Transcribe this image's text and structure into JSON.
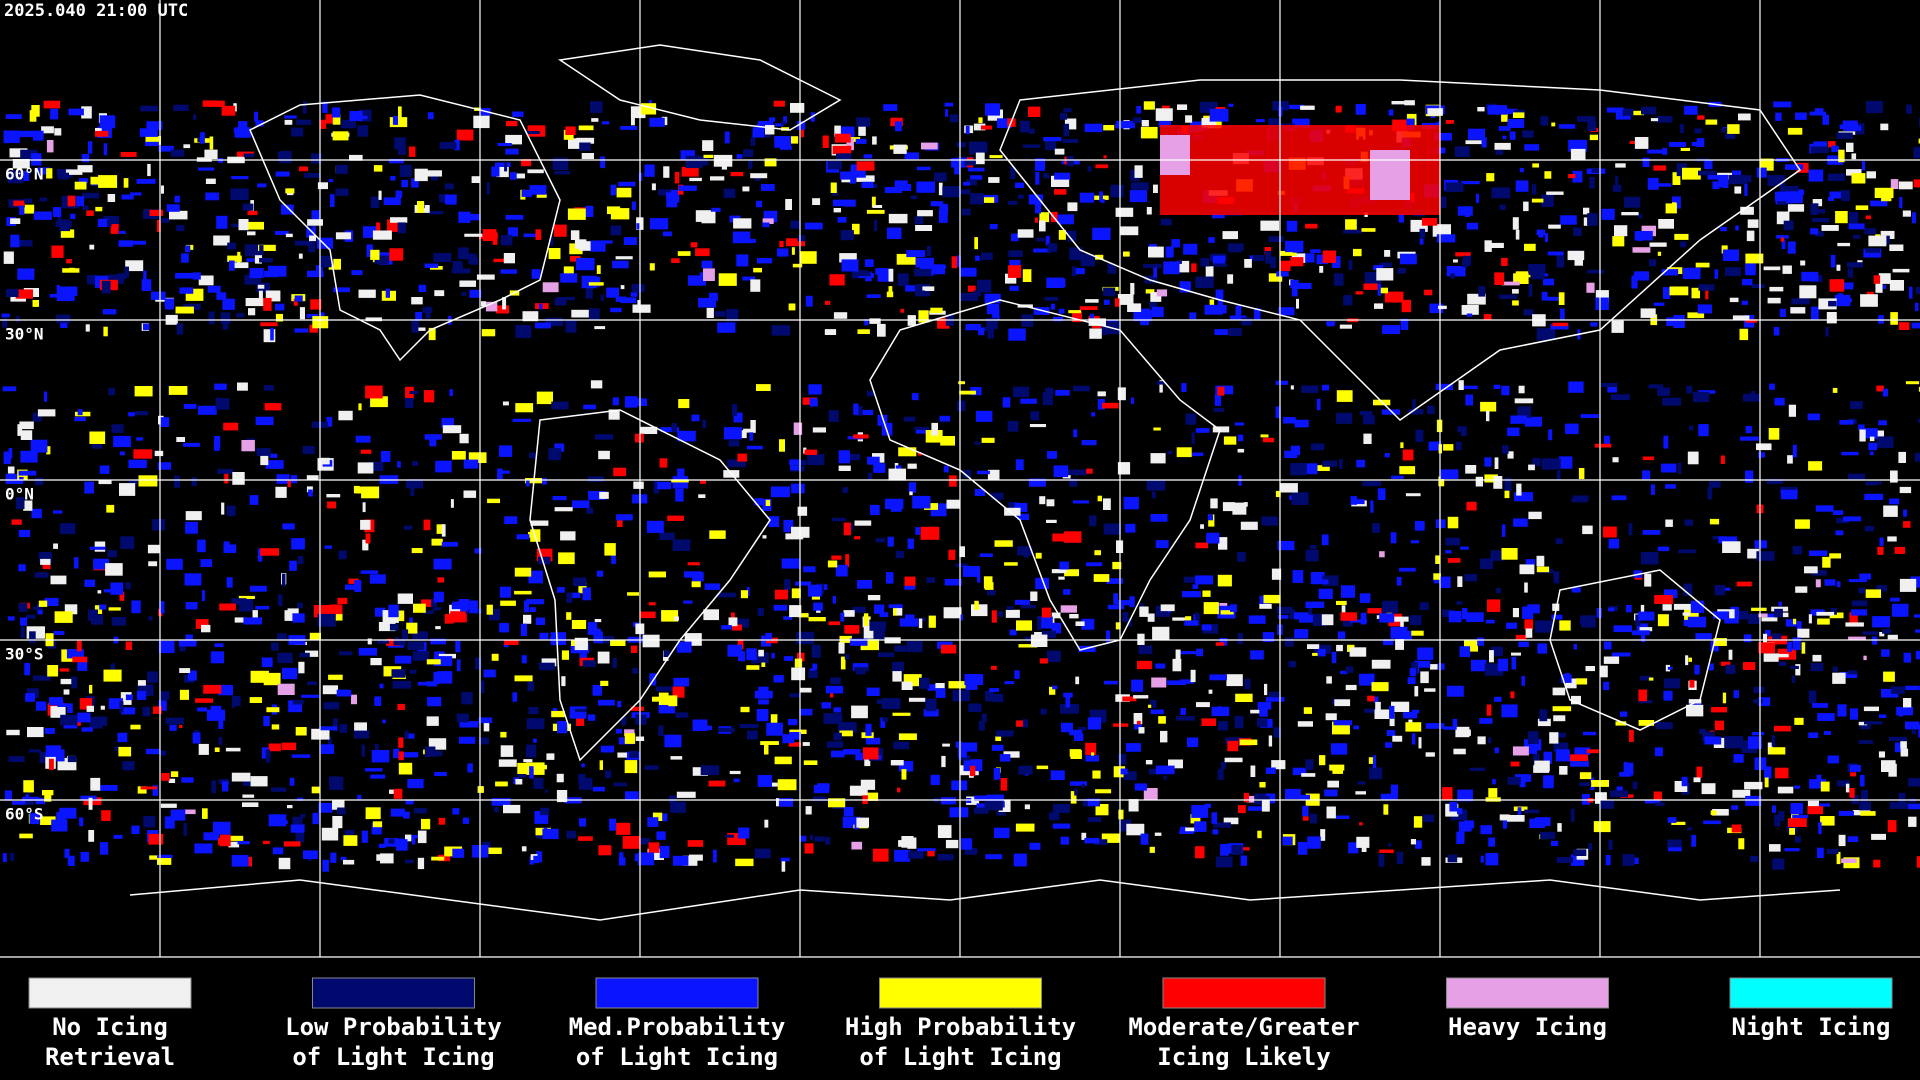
{
  "header": {
    "timestamp": "2025.040 21:00 UTC"
  },
  "map": {
    "latitude_labels": [
      "60°N",
      "30°N",
      "0°N",
      "30°S",
      "60°S"
    ]
  },
  "legend": [
    {
      "label": [
        "No Icing",
        "Retrieval"
      ],
      "color": "#f0f0f0"
    },
    {
      "label": [
        "Low Probability",
        "of Light Icing"
      ],
      "color": "#000a6e"
    },
    {
      "label": [
        "Med.Probability",
        "of Light Icing"
      ],
      "color": "#0a14ff"
    },
    {
      "label": [
        "High Probability",
        "of Light Icing"
      ],
      "color": "#ffff00"
    },
    {
      "label": [
        "Moderate/Greater",
        "Icing Likely"
      ],
      "color": "#ff0000"
    },
    {
      "label": [
        "Heavy Icing"
      ],
      "color": "#e6a0e6"
    },
    {
      "label": [
        "Night Icing"
      ],
      "color": "#00ffff"
    }
  ]
}
